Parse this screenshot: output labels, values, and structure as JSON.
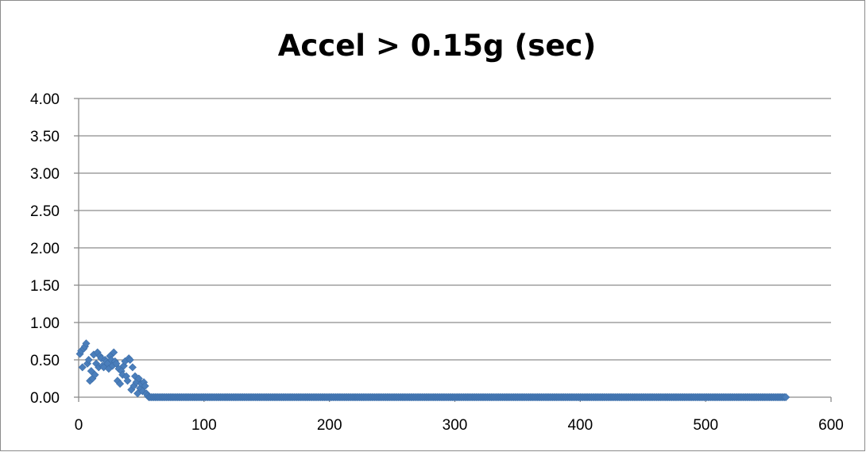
{
  "chart_data": {
    "type": "scatter",
    "title": "Accel > 0.15g (sec)",
    "xlabel": "",
    "ylabel": "",
    "xlim": [
      0,
      600
    ],
    "ylim": [
      0,
      4
    ],
    "x_ticks": [
      0,
      100,
      200,
      300,
      400,
      500,
      600
    ],
    "y_ticks": [
      "0.00",
      "0.50",
      "1.00",
      "1.50",
      "2.00",
      "2.50",
      "3.00",
      "3.50",
      "4.00"
    ],
    "grid": "horizontal",
    "legend": "none",
    "marker": "diamond",
    "colors": {
      "marker": "#4a7ebb",
      "grid": "#8c8c8c",
      "axis": "#8c8c8c"
    },
    "series": [
      {
        "x": [
          1,
          2,
          3,
          4,
          5,
          6,
          7,
          8,
          9,
          10,
          11,
          12,
          13,
          14,
          15,
          16,
          17,
          18,
          19,
          20,
          21,
          22,
          23,
          24,
          25,
          26,
          27,
          28,
          29,
          30,
          31,
          32,
          33,
          34,
          35,
          36,
          37,
          38,
          39,
          40,
          41,
          42,
          43,
          44,
          45,
          46,
          47,
          48,
          49,
          50,
          51,
          52,
          53,
          54,
          55
        ],
        "y": [
          0.58,
          0.62,
          0.4,
          0.65,
          0.68,
          0.72,
          0.45,
          0.5,
          0.22,
          0.35,
          0.25,
          0.57,
          0.3,
          0.45,
          0.6,
          0.4,
          0.55,
          0.52,
          0.42,
          0.4,
          0.5,
          0.48,
          0.45,
          0.38,
          0.55,
          0.5,
          0.42,
          0.6,
          0.48,
          0.45,
          0.22,
          0.38,
          0.18,
          0.35,
          0.3,
          0.42,
          0.48,
          0.28,
          0.22,
          0.52,
          0.5,
          0.1,
          0.4,
          0.15,
          0.28,
          0.2,
          0.05,
          0.25,
          0.12,
          0.18,
          0.08,
          0.2,
          0.15,
          0.05,
          0.02
        ]
      },
      {
        "x_range": [
          56,
          564
        ],
        "x_step": 1,
        "y_value": 0.0
      }
    ]
  }
}
